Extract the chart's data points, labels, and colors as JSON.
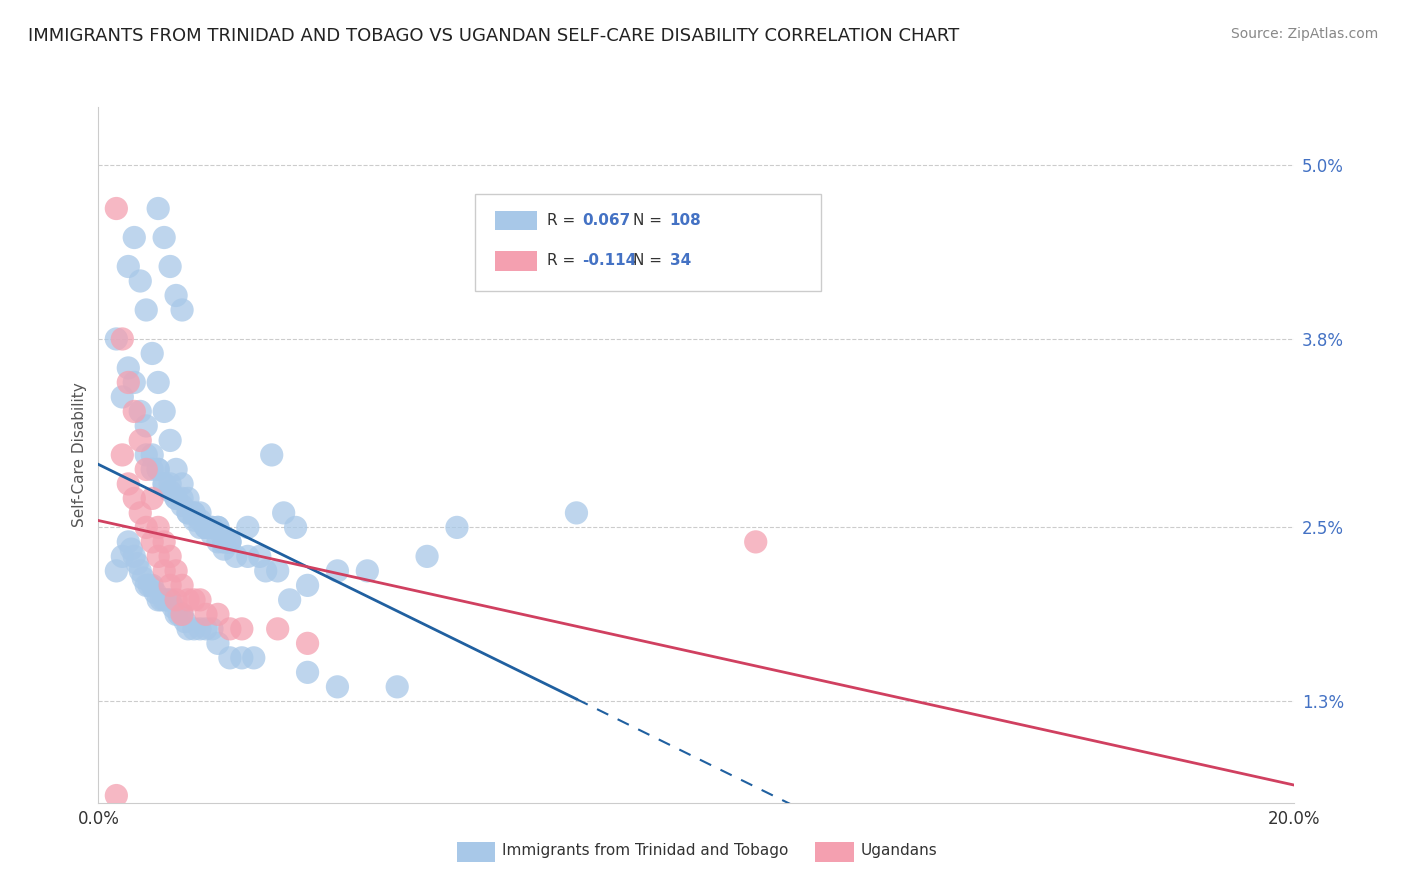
{
  "title": "IMMIGRANTS FROM TRINIDAD AND TOBAGO VS UGANDAN SELF-CARE DISABILITY CORRELATION CHART",
  "source": "Source: ZipAtlas.com",
  "ylabel": "Self-Care Disability",
  "xlim": [
    0.0,
    20.0
  ],
  "ylim": [
    0.6,
    5.4
  ],
  "yticks": [
    1.3,
    2.5,
    3.8,
    5.0
  ],
  "ytick_labels": [
    "1.3%",
    "2.5%",
    "3.8%",
    "5.0%"
  ],
  "legend_r_blue": "0.067",
  "legend_n_blue": "108",
  "legend_r_pink": "-0.114",
  "legend_n_pink": "34",
  "blue_color": "#a8c8e8",
  "pink_color": "#f4a0b0",
  "blue_line_color": "#2060a0",
  "pink_line_color": "#d04060",
  "legend_label_blue": "Immigrants from Trinidad and Tobago",
  "legend_label_pink": "Ugandans",
  "title_fontsize": 13,
  "source_fontsize": 10,
  "blue_points_x": [
    0.3,
    0.5,
    0.6,
    0.7,
    0.8,
    0.9,
    1.0,
    1.1,
    1.2,
    1.3,
    1.4,
    1.5,
    1.6,
    1.7,
    1.8,
    1.9,
    2.0,
    2.1,
    2.2,
    2.3,
    2.5,
    2.7,
    2.9,
    3.1,
    3.3,
    0.4,
    0.5,
    0.6,
    0.7,
    0.8,
    0.9,
    1.0,
    1.1,
    1.2,
    1.3,
    1.4,
    1.5,
    1.6,
    1.7,
    1.8,
    1.9,
    2.0,
    2.1,
    2.2,
    0.3,
    0.4,
    0.5,
    0.55,
    0.6,
    0.65,
    0.7,
    0.75,
    0.8,
    0.85,
    0.9,
    0.95,
    1.0,
    1.05,
    1.1,
    1.15,
    1.2,
    1.25,
    1.3,
    1.35,
    1.4,
    1.45,
    1.5,
    1.6,
    1.7,
    1.8,
    1.9,
    2.0,
    2.2,
    2.4,
    2.6,
    3.2,
    3.5,
    4.0,
    5.0,
    8.0,
    1.0,
    1.1,
    1.2,
    1.3,
    1.4,
    0.8,
    0.9,
    1.0,
    1.1,
    1.2,
    1.3,
    1.4,
    1.5,
    1.6,
    1.7,
    1.8,
    1.9,
    2.0,
    2.1,
    2.2,
    2.5,
    2.8,
    3.0,
    3.5,
    4.0,
    4.5,
    5.5,
    6.0
  ],
  "blue_points_y": [
    3.8,
    4.3,
    4.5,
    4.2,
    4.0,
    3.7,
    3.5,
    3.3,
    3.1,
    2.9,
    2.8,
    2.7,
    2.6,
    2.55,
    2.5,
    2.45,
    2.4,
    2.35,
    2.4,
    2.3,
    2.5,
    2.3,
    3.0,
    2.6,
    2.5,
    3.4,
    3.6,
    3.5,
    3.3,
    3.2,
    3.0,
    2.9,
    2.8,
    2.75,
    2.7,
    2.65,
    2.6,
    2.55,
    2.5,
    2.5,
    2.5,
    2.5,
    2.4,
    2.4,
    2.2,
    2.3,
    2.4,
    2.35,
    2.3,
    2.25,
    2.2,
    2.15,
    2.1,
    2.1,
    2.1,
    2.05,
    2.0,
    2.0,
    2.0,
    2.0,
    2.0,
    1.95,
    1.9,
    1.9,
    1.9,
    1.85,
    1.8,
    1.8,
    1.8,
    1.8,
    1.8,
    1.7,
    1.6,
    1.6,
    1.6,
    2.0,
    1.5,
    1.4,
    1.4,
    2.6,
    4.7,
    4.5,
    4.3,
    4.1,
    4.0,
    3.0,
    2.9,
    2.9,
    2.8,
    2.8,
    2.7,
    2.7,
    2.6,
    2.6,
    2.6,
    2.5,
    2.5,
    2.5,
    2.4,
    2.4,
    2.3,
    2.2,
    2.2,
    2.1,
    2.2,
    2.2,
    2.3,
    2.5
  ],
  "pink_points_x": [
    0.3,
    0.4,
    0.5,
    0.6,
    0.7,
    0.8,
    0.9,
    1.0,
    1.1,
    1.2,
    1.3,
    1.4,
    1.5,
    1.6,
    1.7,
    1.8,
    2.0,
    2.2,
    2.4,
    3.0,
    3.5,
    0.4,
    0.5,
    0.6,
    0.7,
    0.8,
    0.9,
    1.0,
    1.1,
    1.2,
    1.3,
    1.4,
    11.0,
    0.3
  ],
  "pink_points_y": [
    4.7,
    3.8,
    3.5,
    3.3,
    3.1,
    2.9,
    2.7,
    2.5,
    2.4,
    2.3,
    2.2,
    2.1,
    2.0,
    2.0,
    2.0,
    1.9,
    1.9,
    1.8,
    1.8,
    1.8,
    1.7,
    3.0,
    2.8,
    2.7,
    2.6,
    2.5,
    2.4,
    2.3,
    2.2,
    2.1,
    2.0,
    1.9,
    2.4,
    0.65
  ]
}
